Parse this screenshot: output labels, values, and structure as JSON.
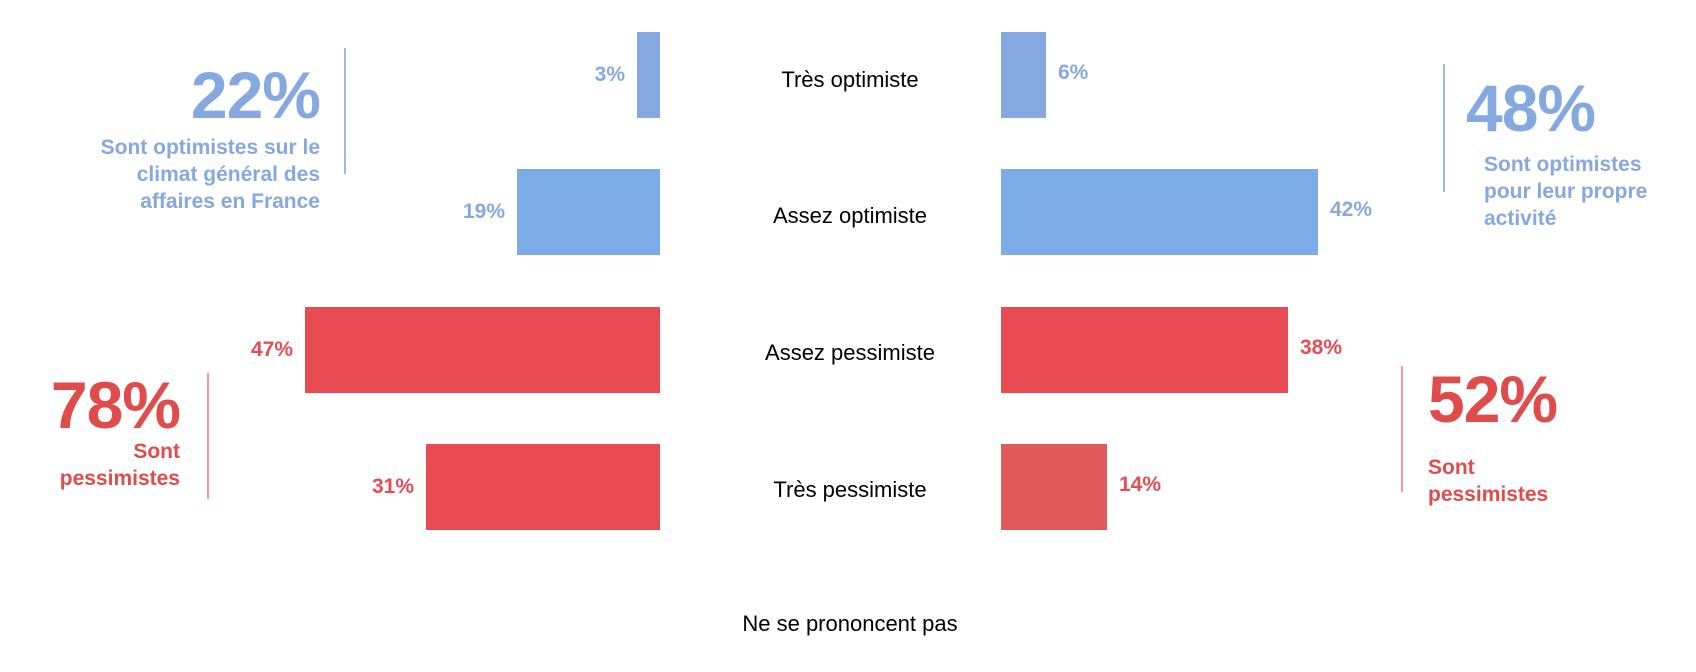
{
  "colors": {
    "optimist_dark": "#86a8e0",
    "optimist_light": "#7bace6",
    "pessimist": "#e84c52",
    "pessimist_light": "#df5a58",
    "summary_blue": "#86a8e0",
    "summary_red": "#e04c4c"
  },
  "chart_data": {
    "type": "bar",
    "orientation": "horizontal-diverging",
    "categories": [
      "Très optimiste",
      "Assez optimiste",
      "Assez pessimiste",
      "Très pessimiste"
    ],
    "series": [
      {
        "values": [
          3,
          19,
          47,
          31
        ],
        "labels": [
          "3%",
          "19%",
          "47%",
          "31%"
        ]
      },
      {
        "values": [
          6,
          42,
          38,
          14
        ],
        "labels": [
          "6%",
          "42%",
          "38%",
          "14%"
        ]
      }
    ],
    "footer": "Ne se prononcent pas"
  },
  "summaries": {
    "left_top": {
      "value": "22%",
      "text_lines": [
        "Sont optimistes sur le",
        "climat général des",
        "affaires en France"
      ]
    },
    "left_bottom": {
      "value": "78%",
      "text_lines": [
        "Sont",
        "pessimistes"
      ]
    },
    "right_top": {
      "value": "48%",
      "text_lines": [
        "Sont optimistes",
        "pour leur propre",
        "activité"
      ]
    },
    "right_bottom": {
      "value": "52%",
      "text_lines": [
        "Sont",
        "pessimistes"
      ]
    }
  }
}
